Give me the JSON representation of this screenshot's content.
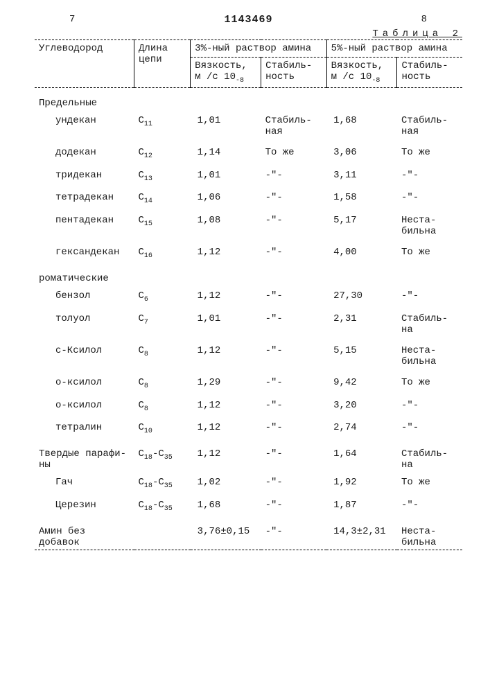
{
  "header": {
    "left_page": "7",
    "doc_number": "1143469",
    "right_page": "8",
    "table_caption": "Таблица 2"
  },
  "columns": {
    "hc": "Углеводород",
    "chain": "Длина цепи",
    "sol3": "3%-ный раствор амина",
    "sol5": "5%-ный раствор амина",
    "visc_label": "Вязкость, м /с 10",
    "visc_exp": "-8",
    "stab_label": "Стабиль­ность"
  },
  "sections": [
    {
      "title": "Предельные",
      "rows": [
        {
          "name": "ундекан",
          "chain": "C",
          "sub": "11",
          "v3": "1,01",
          "s3": "Стабиль-\nная",
          "v5": "1,68",
          "s5": "Стабиль-\nная"
        },
        {
          "name": "додекан",
          "chain": "C",
          "sub": "12",
          "v3": "1,14",
          "s3": "То же",
          "v5": "3,06",
          "s5": "То же"
        },
        {
          "name": "тридекан",
          "chain": "C",
          "sub": "13",
          "v3": "1,01",
          "s3": "-\"-",
          "v5": "3,11",
          "s5": "-\"-"
        },
        {
          "name": "тетрадекан",
          "chain": "C",
          "sub": "14",
          "v3": "1,06",
          "s3": "-\"-",
          "v5": "1,58",
          "s5": "-\"-"
        },
        {
          "name": "пентадекан",
          "chain": "C",
          "sub": "15",
          "v3": "1,08",
          "s3": "-\"-",
          "v5": "5,17",
          "s5": "Неста-\nбильна"
        },
        {
          "name": "гександекан",
          "chain": "C",
          "sub": "16",
          "v3": "1,12",
          "s3": "-\"-",
          "v5": "4,00",
          "s5": "То же"
        }
      ]
    },
    {
      "title": "роматические",
      "rows": [
        {
          "name": "бензол",
          "chain": "C",
          "sub": "6",
          "v3": "1,12",
          "s3": "-\"-",
          "v5": "27,30",
          "s5": "-\"-"
        },
        {
          "name": "толуол",
          "chain": "C",
          "sub": "7",
          "v3": "1,01",
          "s3": "-\"-",
          "v5": "2,31",
          "s5": "Стабиль-\nна"
        },
        {
          "name": "c-Ксилол",
          "chain": "C",
          "sub": "8",
          "v3": "1,12",
          "s3": "-\"-",
          "v5": "5,15",
          "s5": "Неста-\nбильна"
        },
        {
          "name": "о-ксилол",
          "chain": "C",
          "sub": "8",
          "v3": "1,29",
          "s3": "-\"-",
          "v5": "9,42",
          "s5": "То же"
        },
        {
          "name": "о-ксилол",
          "chain": "C",
          "sub": "8",
          "v3": "1,12",
          "s3": "-\"-",
          "v5": "3,20",
          "s5": "-\"-"
        },
        {
          "name": "тетралин",
          "chain": "C",
          "sub": "10",
          "v3": "1,12",
          "s3": "-\"-",
          "v5": "2,74",
          "s5": "-\"-"
        }
      ]
    },
    {
      "title": "Твердые парафи-\nны",
      "title_chain": "C",
      "title_sub": "18",
      "title_chain2": "-C",
      "title_sub2": "35",
      "title_v3": "1,12",
      "title_s3": "-\"-",
      "title_v5": "1,64",
      "title_s5": "Стабиль-\nна",
      "rows": [
        {
          "name": "Гач",
          "chain": "C",
          "sub": "18",
          "chain2": "-C",
          "sub2": "35",
          "v3": "1,02",
          "s3": "-\"-",
          "v5": "1,92",
          "s5": "То же"
        },
        {
          "name": "Церезин",
          "chain": "C",
          "sub": "18",
          "chain2": "-C",
          "sub2": "35",
          "v3": "1,68",
          "s3": "-\"-",
          "v5": "1,87",
          "s5": "-\"-"
        }
      ]
    },
    {
      "title": "Амин без\nдобавок",
      "title_v3": "3,76±0,15",
      "title_s3": "-\"-",
      "title_v5": "14,3±2,31",
      "title_s5": "Неста-\nбильна",
      "rows": []
    }
  ]
}
